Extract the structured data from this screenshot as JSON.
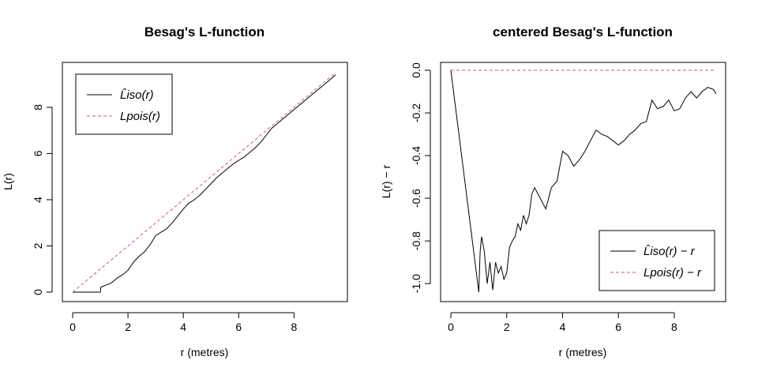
{
  "chart_data": [
    {
      "type": "line",
      "title": "Besag's L-function",
      "xlabel": "r (metres)",
      "ylabel": "L(r)",
      "xlim": [
        0,
        9.5
      ],
      "ylim": [
        0,
        9.5
      ],
      "xticks": [
        "0",
        "2",
        "4",
        "6",
        "8"
      ],
      "yticks": [
        "0",
        "2",
        "4",
        "6",
        "8"
      ],
      "legend_position": "top-left",
      "series": [
        {
          "name": "L̂iso(r)",
          "color": "#000000",
          "style": "solid",
          "x": [
            0,
            0.3,
            0.6,
            0.9,
            1.0,
            1.02,
            1.2,
            1.4,
            1.6,
            1.8,
            2.0,
            2.2,
            2.4,
            2.6,
            2.8,
            3.0,
            3.2,
            3.4,
            3.6,
            3.8,
            4.0,
            4.2,
            4.4,
            4.6,
            4.8,
            5.0,
            5.2,
            5.4,
            5.6,
            5.8,
            6.0,
            6.2,
            6.4,
            6.6,
            6.8,
            7.0,
            7.2,
            7.4,
            7.6,
            7.8,
            8.0,
            8.2,
            8.4,
            8.6,
            8.8,
            9.0,
            9.2,
            9.4,
            9.5
          ],
          "y": [
            0,
            0,
            0,
            0,
            0,
            0.22,
            0.3,
            0.4,
            0.6,
            0.75,
            0.95,
            1.3,
            1.55,
            1.75,
            2.05,
            2.45,
            2.6,
            2.75,
            3.0,
            3.3,
            3.6,
            3.85,
            4.0,
            4.2,
            4.45,
            4.7,
            4.95,
            5.15,
            5.35,
            5.55,
            5.7,
            5.85,
            6.05,
            6.25,
            6.5,
            6.8,
            7.1,
            7.3,
            7.5,
            7.7,
            7.9,
            8.1,
            8.3,
            8.5,
            8.7,
            8.9,
            9.1,
            9.3,
            9.4
          ]
        },
        {
          "name": "Lpois(r)",
          "color": "#DF536B",
          "style": "dashed",
          "x": [
            0,
            9.5
          ],
          "y": [
            0,
            9.5
          ]
        }
      ]
    },
    {
      "type": "line",
      "title": "centered Besag's L-function",
      "xlabel": "r (metres)",
      "ylabel": "L(r) − r",
      "xlim": [
        0,
        9.5
      ],
      "ylim": [
        -1.04,
        0
      ],
      "xticks": [
        "0",
        "2",
        "4",
        "6",
        "8"
      ],
      "yticks": [
        "0.0",
        "-0.2",
        "-0.4",
        "-0.6",
        "-0.8",
        "-1.0"
      ],
      "legend_position": "bottom-right",
      "series": [
        {
          "name": "L̂iso(r) − r",
          "color": "#000000",
          "style": "solid",
          "x": [
            0,
            1.0,
            1.05,
            1.1,
            1.2,
            1.3,
            1.4,
            1.5,
            1.6,
            1.7,
            1.8,
            1.9,
            2.0,
            2.1,
            2.2,
            2.3,
            2.4,
            2.5,
            2.6,
            2.7,
            2.8,
            2.9,
            3.0,
            3.2,
            3.4,
            3.6,
            3.8,
            4.0,
            4.2,
            4.4,
            4.6,
            4.8,
            5.0,
            5.2,
            5.4,
            5.6,
            5.8,
            6.0,
            6.2,
            6.4,
            6.6,
            6.8,
            7.0,
            7.2,
            7.4,
            7.6,
            7.8,
            8.0,
            8.2,
            8.4,
            8.6,
            8.8,
            9.0,
            9.2,
            9.4,
            9.5
          ],
          "y": [
            0,
            -1.04,
            -0.85,
            -0.78,
            -0.85,
            -1.0,
            -0.9,
            -1.03,
            -0.9,
            -0.95,
            -0.92,
            -0.98,
            -0.95,
            -0.83,
            -0.8,
            -0.78,
            -0.72,
            -0.75,
            -0.68,
            -0.72,
            -0.68,
            -0.58,
            -0.55,
            -0.6,
            -0.65,
            -0.55,
            -0.52,
            -0.38,
            -0.4,
            -0.45,
            -0.42,
            -0.38,
            -0.33,
            -0.28,
            -0.3,
            -0.31,
            -0.33,
            -0.35,
            -0.33,
            -0.3,
            -0.28,
            -0.25,
            -0.24,
            -0.14,
            -0.18,
            -0.17,
            -0.14,
            -0.19,
            -0.18,
            -0.13,
            -0.1,
            -0.13,
            -0.1,
            -0.08,
            -0.09,
            -0.11
          ]
        },
        {
          "name": "Lpois(r) − r",
          "color": "#DF536B",
          "style": "dashed",
          "x": [
            0,
            9.5
          ],
          "y": [
            0,
            0
          ]
        }
      ]
    }
  ]
}
